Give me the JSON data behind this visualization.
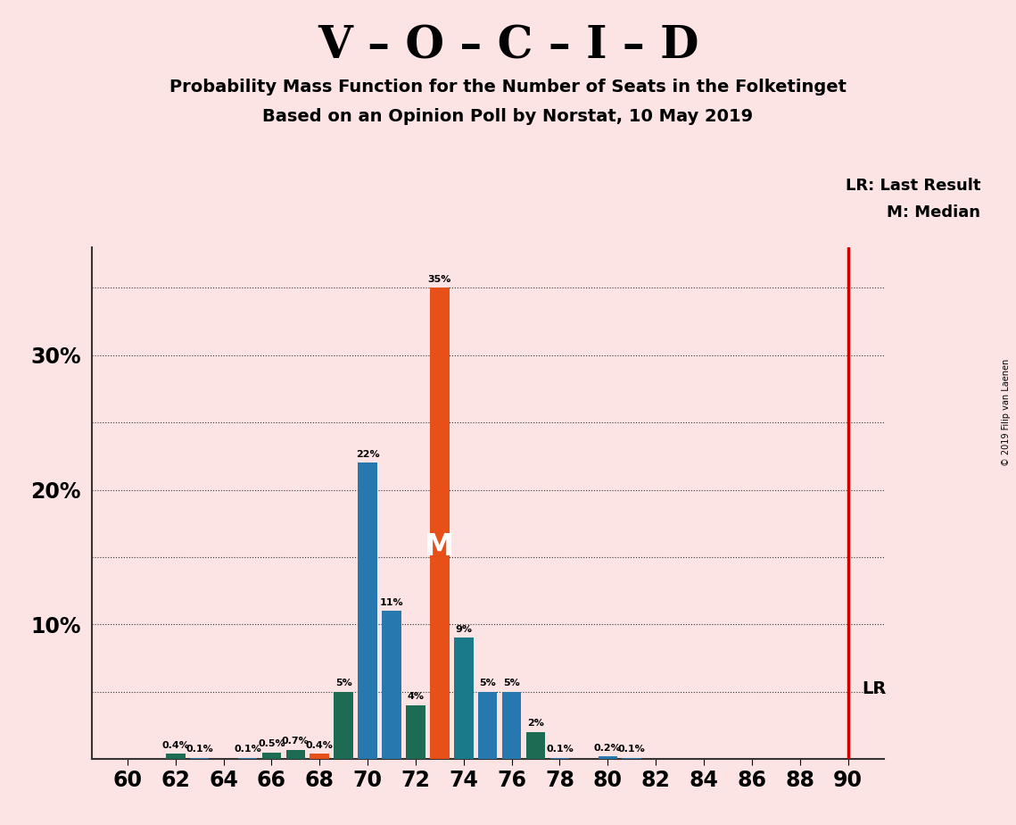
{
  "title": "V – O – C – I – D",
  "subtitle1": "Probability Mass Function for the Number of Seats in the Folketinget",
  "subtitle2": "Based on an Opinion Poll by Norstat, 10 May 2019",
  "copyright": "© 2019 Filip van Laenen",
  "background_color": "#fce4e4",
  "seats": [
    60,
    61,
    62,
    63,
    64,
    65,
    66,
    67,
    68,
    69,
    70,
    71,
    72,
    73,
    74,
    75,
    76,
    77,
    78,
    79,
    80,
    81,
    82,
    83,
    84,
    85,
    86,
    87,
    88,
    89,
    90
  ],
  "values": [
    0.0,
    0.0,
    0.4,
    0.1,
    0.0,
    0.1,
    0.5,
    0.7,
    0.4,
    5.0,
    22.0,
    11.0,
    4.0,
    35.0,
    9.0,
    5.0,
    5.0,
    2.0,
    0.1,
    0.0,
    0.2,
    0.1,
    0.0,
    0.0,
    0.0,
    0.0,
    0.0,
    0.0,
    0.0,
    0.0,
    0.0
  ],
  "labels": [
    "0%",
    "0%",
    "0.4%",
    "0.1%",
    "0%",
    "0.1%",
    "0.5%",
    "0.7%",
    "0.4%",
    "5%",
    "22%",
    "11%",
    "4%",
    "35%",
    "9%",
    "5%",
    "5%",
    "2%",
    "0.1%",
    "0%",
    "0.2%",
    "0.1%",
    "0%",
    "0%",
    "0%",
    "0%",
    "0%",
    "0%",
    "0%",
    "0%",
    "0%"
  ],
  "bar_colors": [
    "#2878b0",
    "#2878b0",
    "#1d6b52",
    "#2878b0",
    "#2878b0",
    "#2878b0",
    "#1d6b52",
    "#1d6b52",
    "#e8501a",
    "#1d6b52",
    "#2878b0",
    "#2878b0",
    "#1d6b52",
    "#e8501a",
    "#1a7a8a",
    "#2878b0",
    "#2878b0",
    "#1d6b52",
    "#2878b0",
    "#2878b0",
    "#2878b0",
    "#2878b0",
    "#2878b0",
    "#2878b0",
    "#2878b0",
    "#2878b0",
    "#2878b0",
    "#2878b0",
    "#2878b0",
    "#2878b0",
    "#2878b0"
  ],
  "median_seat": 73,
  "last_result_seat": 90,
  "ylim": [
    0,
    38
  ],
  "lr_label": "LR: Last Result",
  "m_label": "M: Median",
  "lr_line_color": "#cc0000",
  "ylabel_ticks": [
    10,
    20,
    30
  ],
  "ylabel_tick_labels": [
    "10%",
    "20%",
    "30%"
  ]
}
